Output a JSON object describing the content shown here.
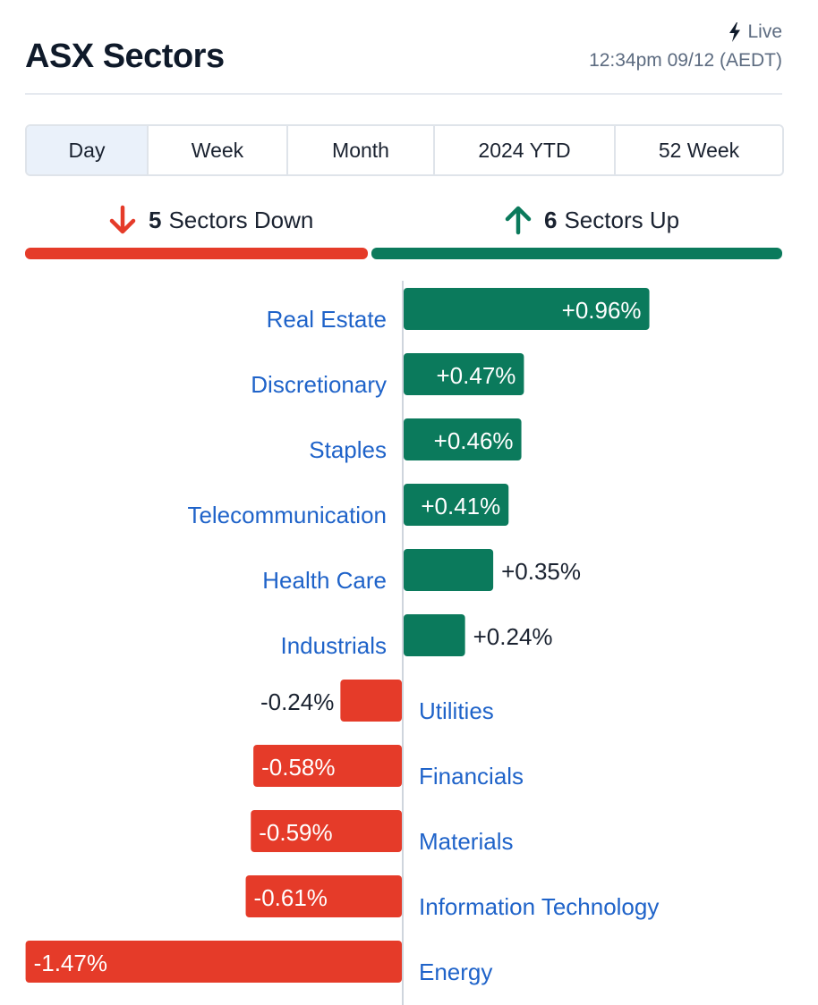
{
  "header": {
    "title": "ASX Sectors",
    "live_label": "Live",
    "timestamp": "12:34pm 09/12 (AEDT)"
  },
  "tabs": [
    {
      "label": "Day",
      "active": true
    },
    {
      "label": "Week",
      "active": false
    },
    {
      "label": "Month",
      "active": false
    },
    {
      "label": "2024 YTD",
      "active": false
    },
    {
      "label": "52 Week",
      "active": false
    }
  ],
  "summary": {
    "down_count": "5",
    "down_label": "Sectors Down",
    "up_count": "6",
    "up_label": "Sectors Up"
  },
  "colors": {
    "positive": "#0b7a5c",
    "negative": "#e53b29",
    "label": "#1f63c9",
    "text": "#1a2230"
  },
  "chart_data": {
    "type": "bar",
    "orientation": "horizontal-diverging",
    "categories": [
      "Real Estate",
      "Discretionary",
      "Staples",
      "Telecommunication",
      "Health Care",
      "Industrials",
      "Utilities",
      "Financials",
      "Materials",
      "Information Technology",
      "Energy"
    ],
    "values": [
      0.96,
      0.47,
      0.46,
      0.41,
      0.35,
      0.24,
      -0.24,
      -0.58,
      -0.59,
      -0.61,
      -1.47
    ],
    "value_labels": [
      "+0.96%",
      "+0.47%",
      "+0.46%",
      "+0.41%",
      "+0.35%",
      "+0.24%",
      "-0.24%",
      "-0.58%",
      "-0.59%",
      "-0.61%",
      "-1.47%"
    ],
    "unit": "%"
  }
}
